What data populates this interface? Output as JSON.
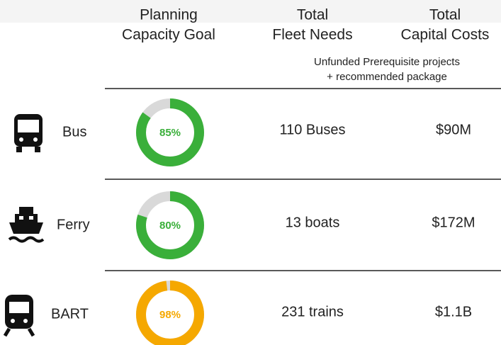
{
  "header": {
    "columns": [
      {
        "lines": [
          "Planning",
          "Capacity Goal"
        ]
      },
      {
        "lines": [
          "Total",
          "Fleet Needs"
        ]
      },
      {
        "lines": [
          "Total",
          "Capital Costs"
        ]
      }
    ],
    "note": [
      "Unfunded Prerequisite projects",
      "+ recommended package"
    ]
  },
  "rows": [
    {
      "mode": "Bus",
      "goal": 85,
      "goal_label": "85%",
      "color": "#3aaf3a",
      "fleet": "110 Buses",
      "cost": "$90M"
    },
    {
      "mode": "Ferry",
      "goal": 80,
      "goal_label": "80%",
      "color": "#3aaf3a",
      "fleet": "13 boats",
      "cost": "$172M"
    },
    {
      "mode": "BART",
      "goal": 98,
      "goal_label": "98%",
      "color": "#f5a800",
      "fleet": "231 trains",
      "cost": "$1.1B"
    }
  ]
}
